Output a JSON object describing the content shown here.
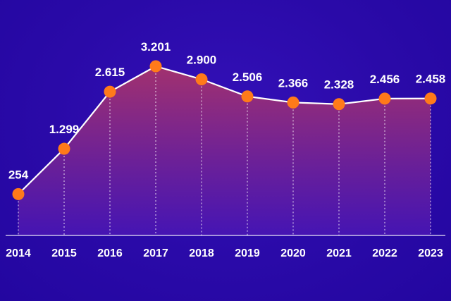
{
  "chart_data": {
    "type": "area",
    "title": "",
    "xlabel": "",
    "ylabel": "",
    "categories": [
      "2014",
      "2015",
      "2016",
      "2017",
      "2018",
      "2019",
      "2020",
      "2021",
      "2022",
      "2023"
    ],
    "values": [
      254,
      1299,
      2615,
      3201,
      2900,
      2506,
      2366,
      2328,
      2456,
      2458
    ],
    "value_labels": [
      "254",
      "1.299",
      "2.615",
      "3.201",
      "2.900",
      "2.506",
      "2.366",
      "2.328",
      "2.456",
      "2.458"
    ],
    "ylim": [
      -700,
      3800
    ],
    "grid": false,
    "legend": "none"
  },
  "colors": {
    "background": "#2a0aa8",
    "area_top": "#a8336b",
    "area_bottom": "#4a16b5",
    "line": "#ffffff",
    "marker": "#ff7a1a",
    "text": "#ffffff"
  }
}
